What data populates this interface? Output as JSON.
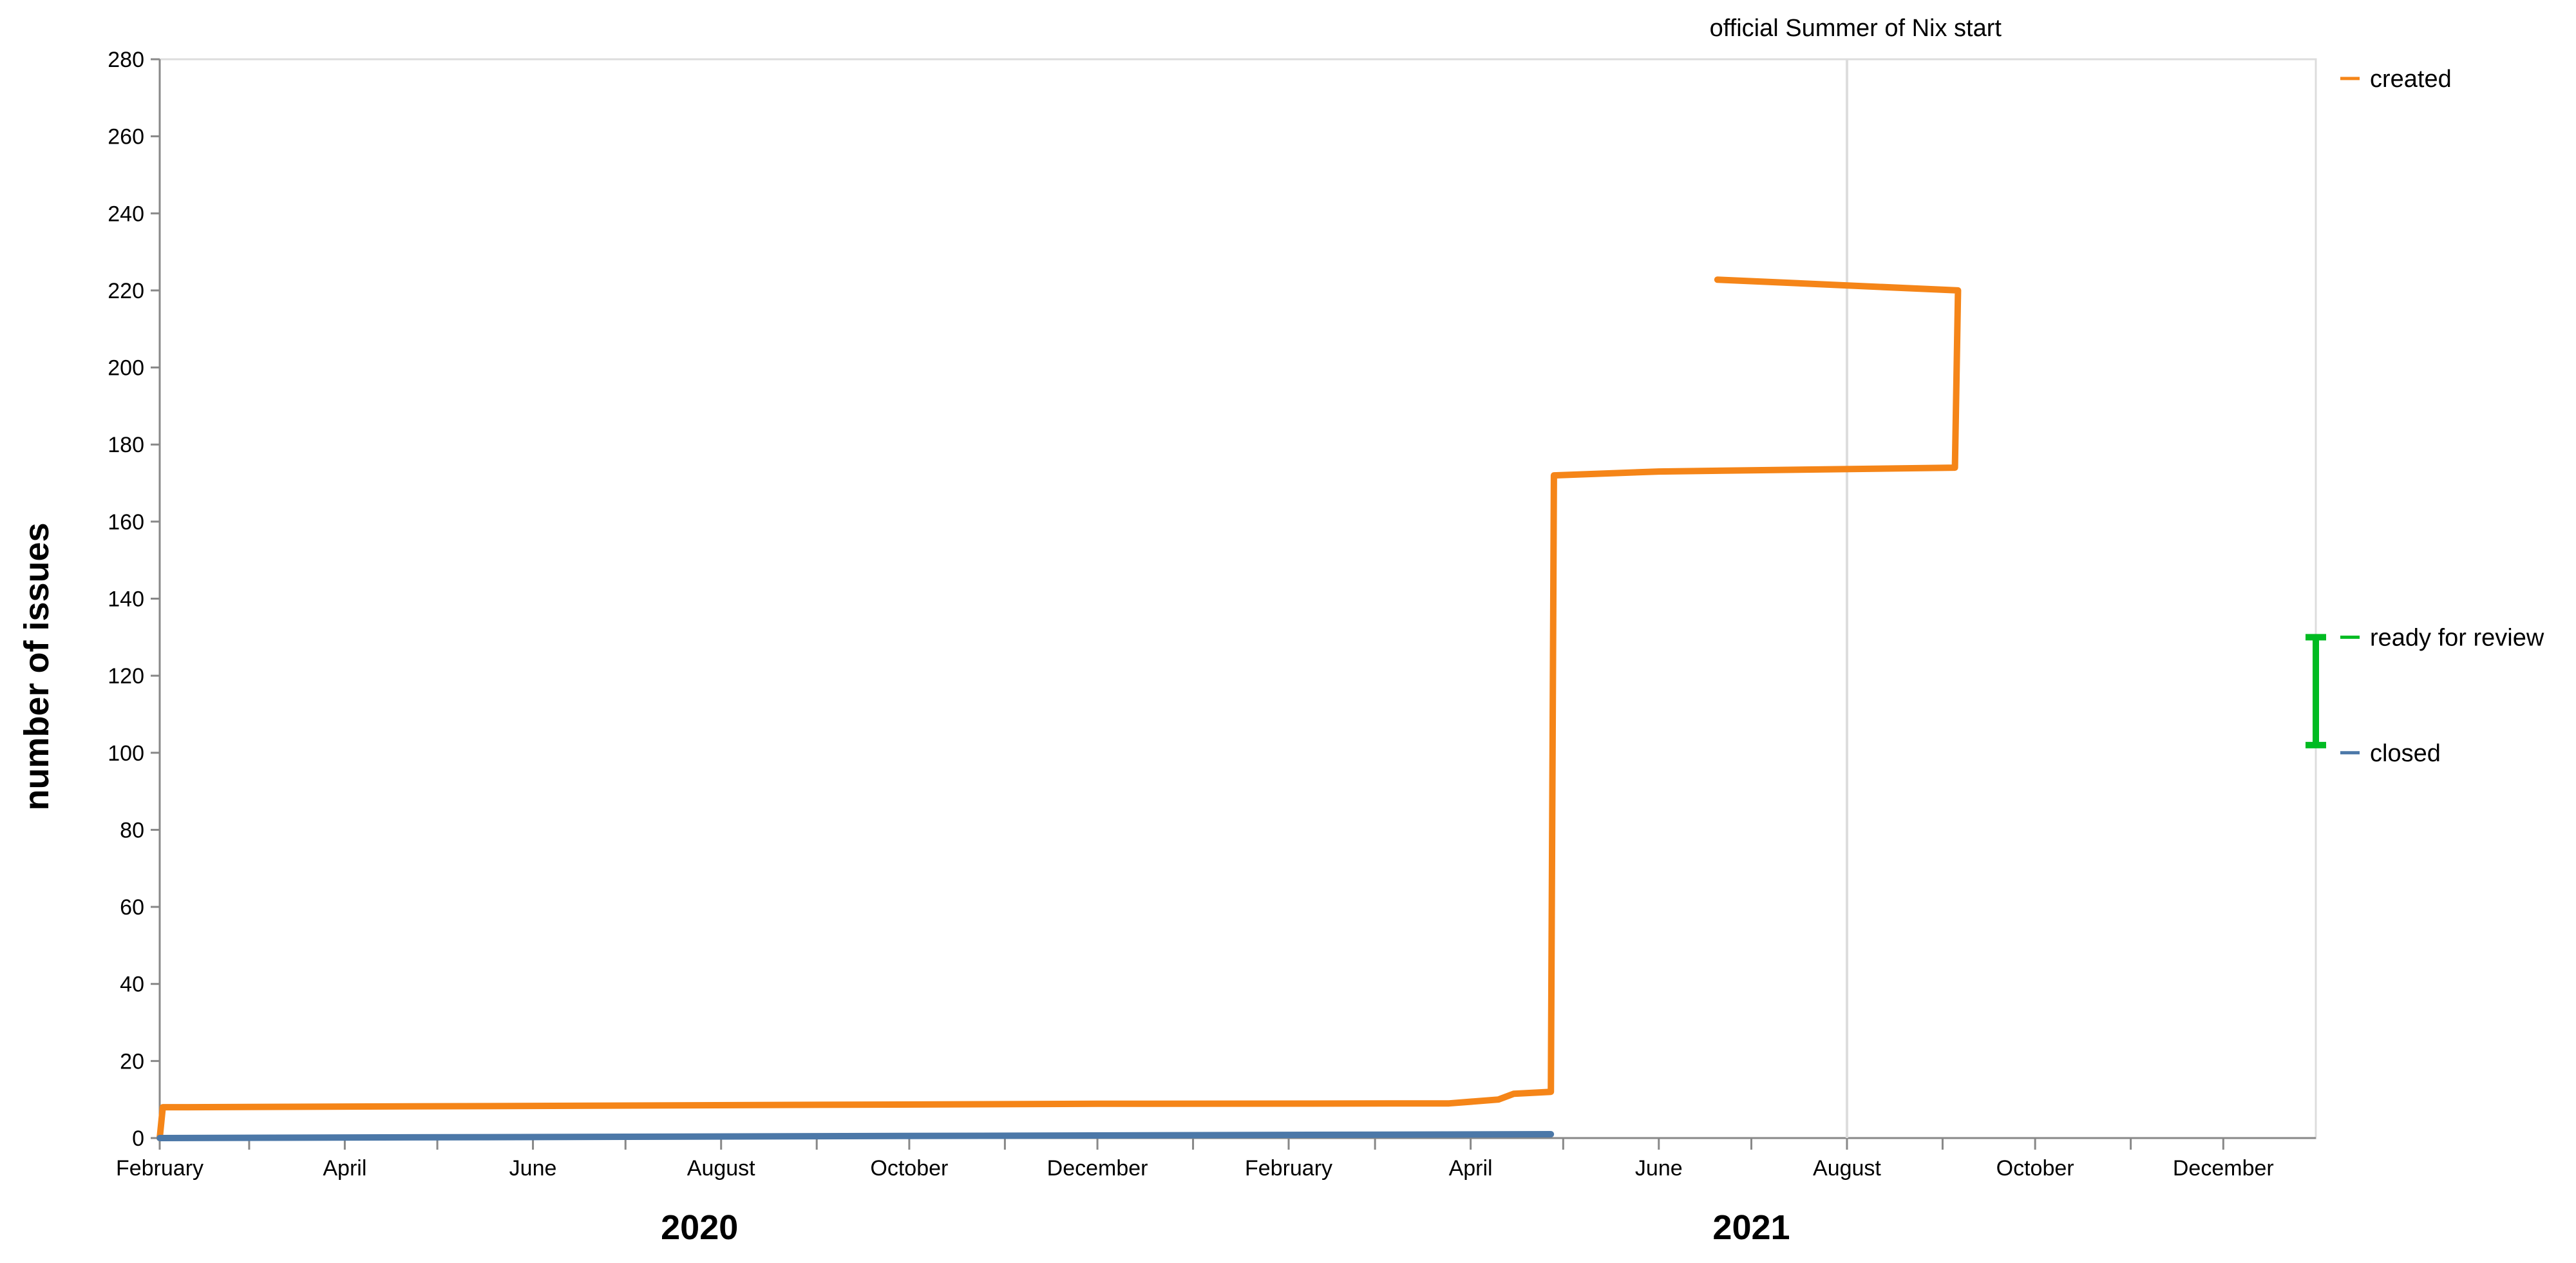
{
  "chart_data": {
    "type": "line",
    "title": "",
    "xlabel": "",
    "ylabel": "number of issues",
    "ylim": [
      0,
      280
    ],
    "y_ticks": [
      0,
      20,
      40,
      60,
      80,
      100,
      120,
      140,
      160,
      180,
      200,
      220,
      240,
      260,
      280
    ],
    "xlim": [
      "2020-02-01",
      "2021-12-31"
    ],
    "x_tick_labels": [
      {
        "date": "2020-02-01",
        "label": "February"
      },
      {
        "date": "2020-04-01",
        "label": "April"
      },
      {
        "date": "2020-06-01",
        "label": "June"
      },
      {
        "date": "2020-08-01",
        "label": "August"
      },
      {
        "date": "2020-10-01",
        "label": "October"
      },
      {
        "date": "2020-12-01",
        "label": "December"
      },
      {
        "date": "2021-02-01",
        "label": "February"
      },
      {
        "date": "2021-04-01",
        "label": "April"
      },
      {
        "date": "2021-06-01",
        "label": "June"
      },
      {
        "date": "2021-08-01",
        "label": "August"
      },
      {
        "date": "2021-10-01",
        "label": "October"
      },
      {
        "date": "2021-12-01",
        "label": "December"
      }
    ],
    "x_minor_ticks": [
      "2020-03-01",
      "2020-05-01",
      "2020-07-01",
      "2020-09-01",
      "2020-11-01",
      "2021-01-01",
      "2021-03-01",
      "2021-05-01",
      "2021-07-01",
      "2021-09-01",
      "2021-11-01"
    ],
    "year_labels": [
      {
        "date": "2020-07-25",
        "label": "2020"
      },
      {
        "date": "2021-07-01",
        "label": "2021"
      }
    ],
    "grid": false,
    "legend_placement": "right, inline at line ends",
    "annotations": [
      {
        "type": "vertical_rule",
        "x": "2021-08-01",
        "label": "official Summer of Nix start",
        "color": "#dddddd"
      }
    ],
    "error_bars": [
      {
        "name": "ready for review",
        "x": "2021-12-31",
        "y_low": 102,
        "y_high": 130,
        "color": "#00bb22"
      }
    ],
    "series": [
      {
        "name": "created",
        "color": "#f58518",
        "points": [
          [
            "2020-02-01",
            0
          ],
          [
            "2020-02-02",
            8
          ],
          [
            "2020-02-10",
            8
          ],
          [
            "2020-12-01",
            8.9
          ],
          [
            "2021-03-25",
            9
          ],
          [
            "2021-04-10",
            10
          ],
          [
            "2021-04-15",
            11.5
          ],
          [
            "2021-04-27",
            12
          ],
          [
            "2021-04-28",
            172
          ],
          [
            "2021-06-01",
            173
          ],
          [
            "2021-09-05",
            174
          ],
          [
            "2021-09-06",
            220
          ],
          [
            "2021-06-20",
            222.8
          ]
        ]
      },
      {
        "name": "closed",
        "color": "#4c78a8",
        "points": [
          [
            "2020-02-01",
            0
          ],
          [
            "2021-04-27",
            1
          ]
        ]
      }
    ]
  },
  "legend": {
    "items": [
      {
        "label": "created",
        "color": "#f58518"
      },
      {
        "label": "ready for review",
        "color": "#00bb22"
      },
      {
        "label": "closed",
        "color": "#4c78a8"
      }
    ]
  }
}
